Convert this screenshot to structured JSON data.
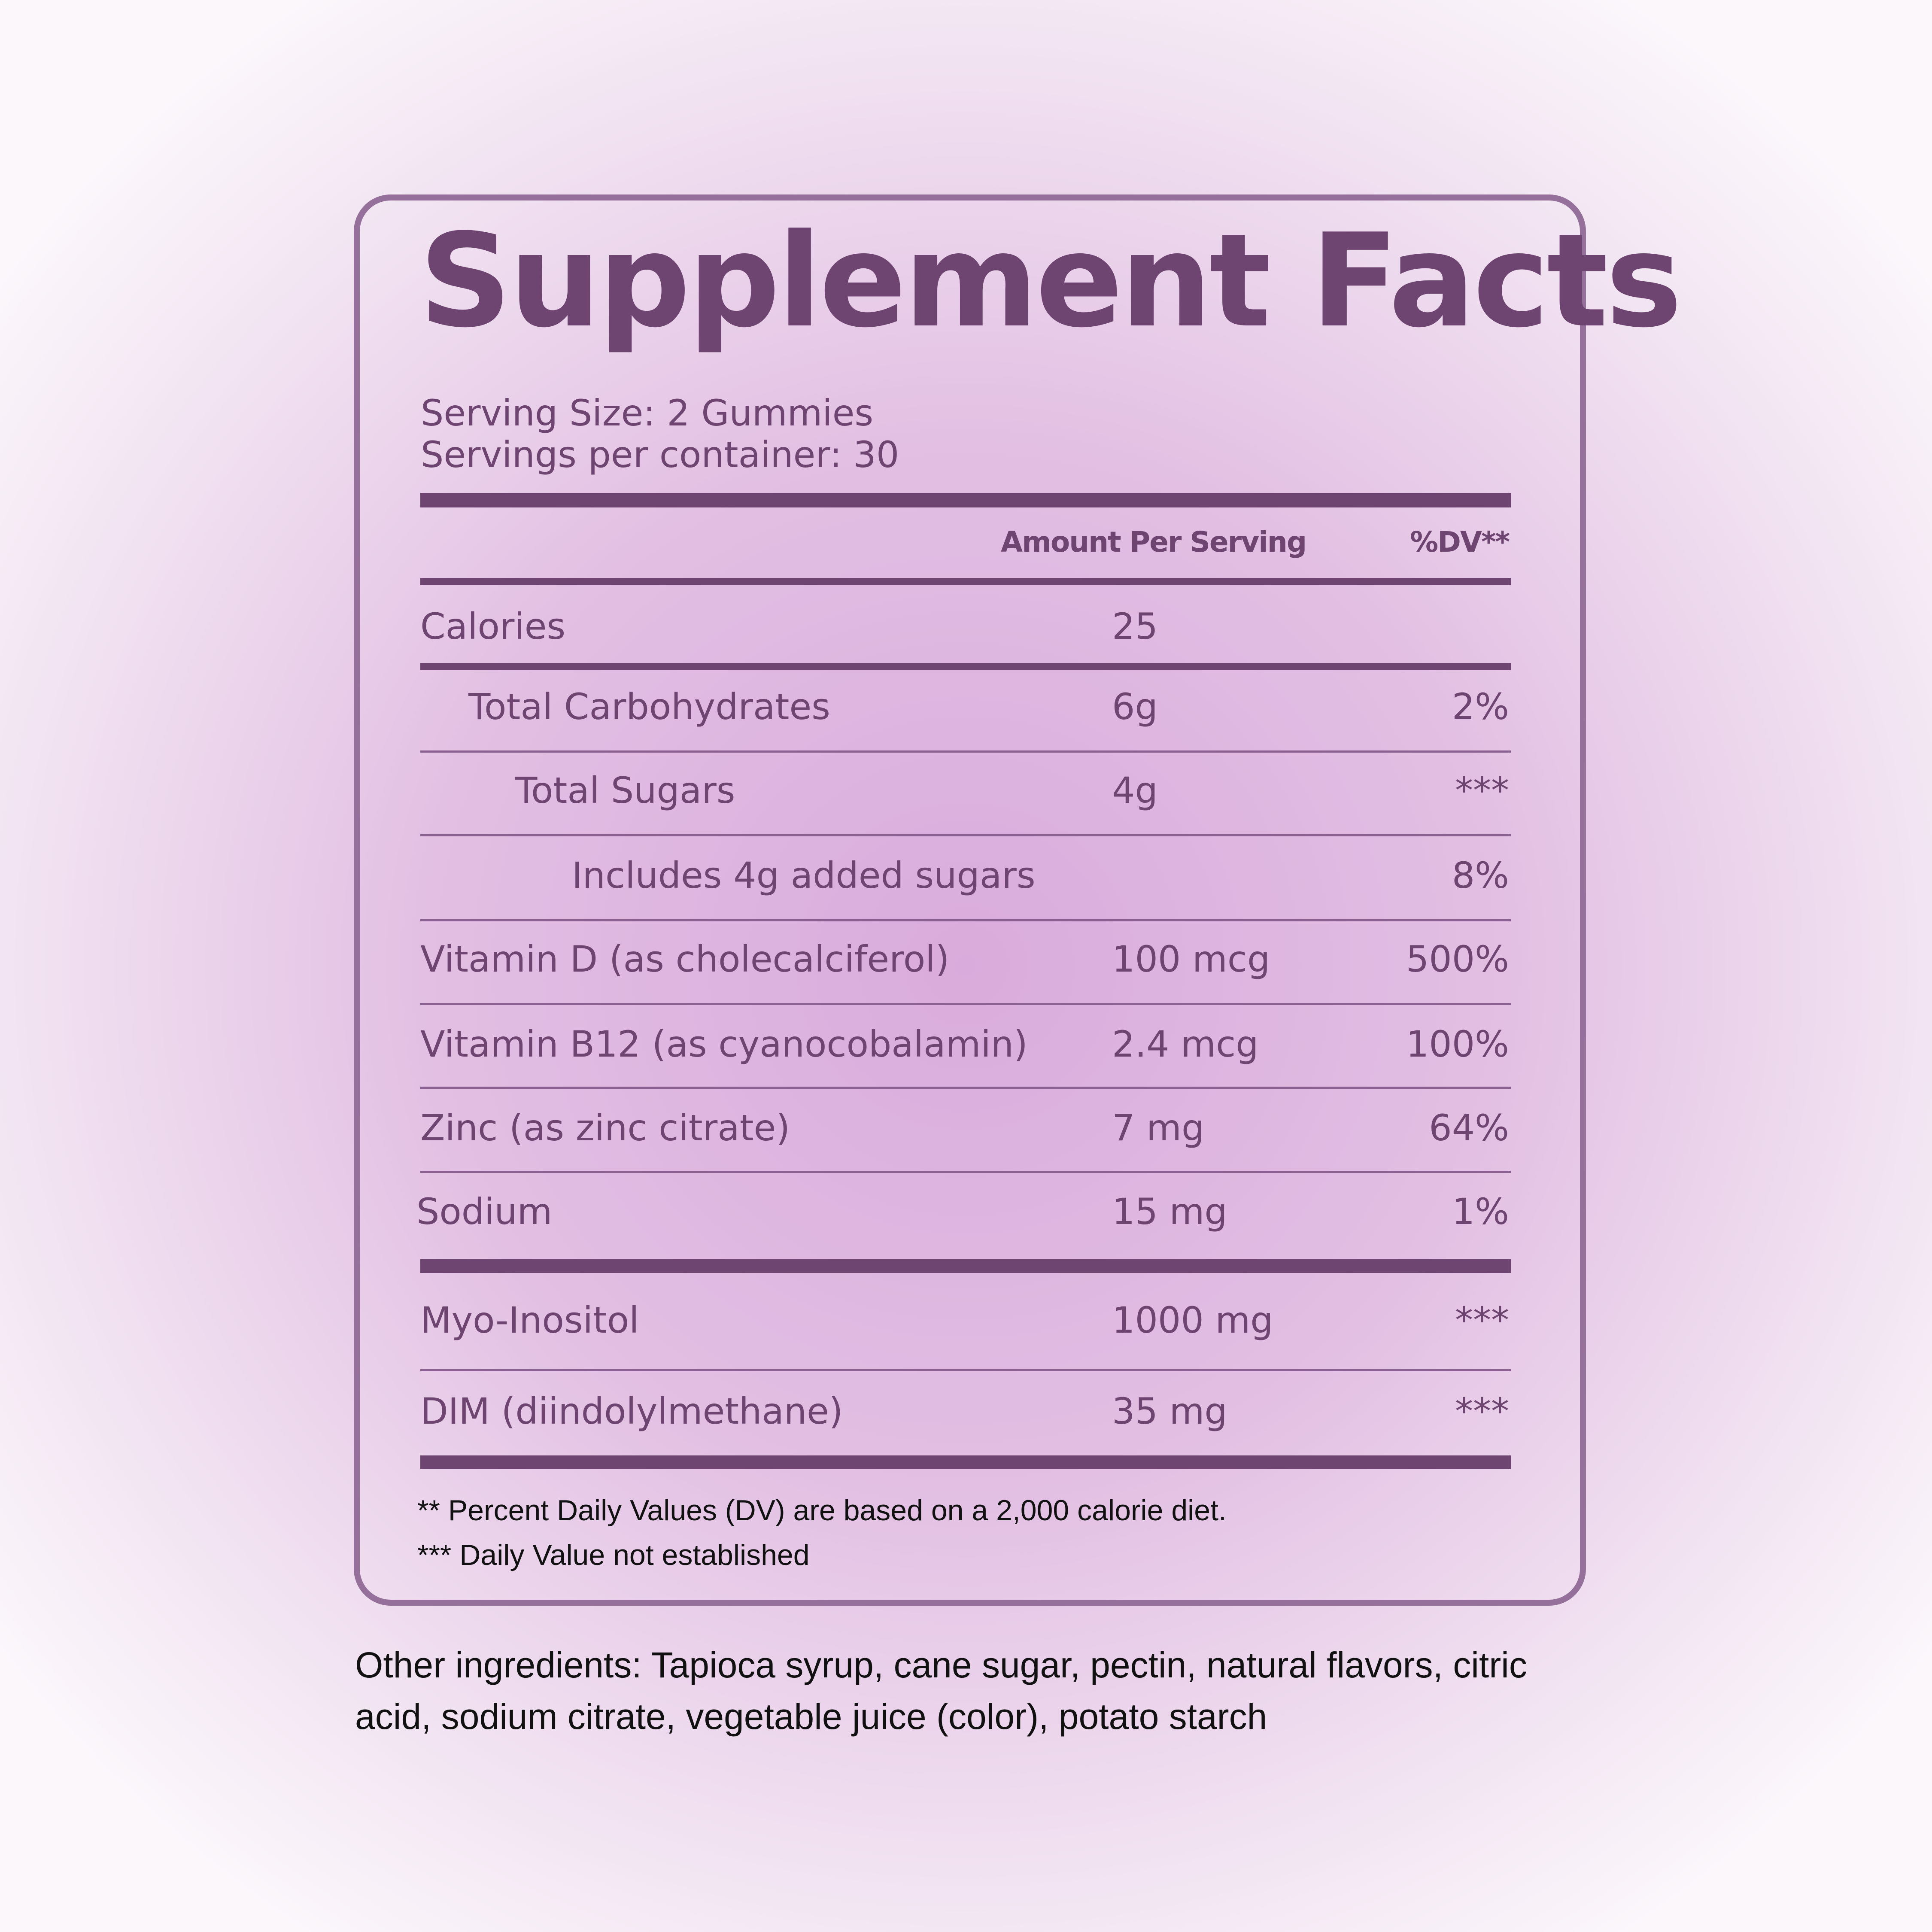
{
  "title": "Supplement Facts",
  "serving_size": "Serving Size: 2 Gummies",
  "servings_per_container": "Servings per container: 30",
  "header": {
    "amount": "Amount Per Serving",
    "dv": "%DV**"
  },
  "rows": [
    {
      "name": "Calories",
      "amount": "25",
      "dv": ""
    },
    {
      "name": "Total Carbohydrates",
      "amount": "6g",
      "dv": "2%"
    },
    {
      "name": "Total Sugars",
      "amount": "4g",
      "dv": "***"
    },
    {
      "name": "Includes 4g added sugars",
      "amount": "",
      "dv": "8%"
    },
    {
      "name": "Vitamin D (as cholecalciferol)",
      "amount": "100 mcg",
      "dv": "500%"
    },
    {
      "name": "Vitamin B12 (as cyanocobalamin)",
      "amount": "2.4 mcg",
      "dv": "100%"
    },
    {
      "name": "Zinc (as zinc citrate)",
      "amount": "7 mg",
      "dv": "64%"
    },
    {
      "name": "Sodium",
      "amount": "15 mg",
      "dv": "1%"
    },
    {
      "name": "Myo-Inositol",
      "amount": "1000 mg",
      "dv": "***"
    },
    {
      "name": "DIM (diindolylmethane)",
      "amount": "35 mg",
      "dv": "***"
    }
  ],
  "footnotes": [
    "** Percent Daily Values (DV) are based on a 2,000 calorie diet.",
    "*** Daily Value not established"
  ],
  "other_ingredients": "Other ingredients: Tapioca syrup, cane sugar, pectin, natural flavors, citric acid, sodium citrate, vegetable juice (color), potato starch",
  "colors": {
    "primary": "#6e4470",
    "border": "#94709a",
    "text_dark": "#111111"
  }
}
